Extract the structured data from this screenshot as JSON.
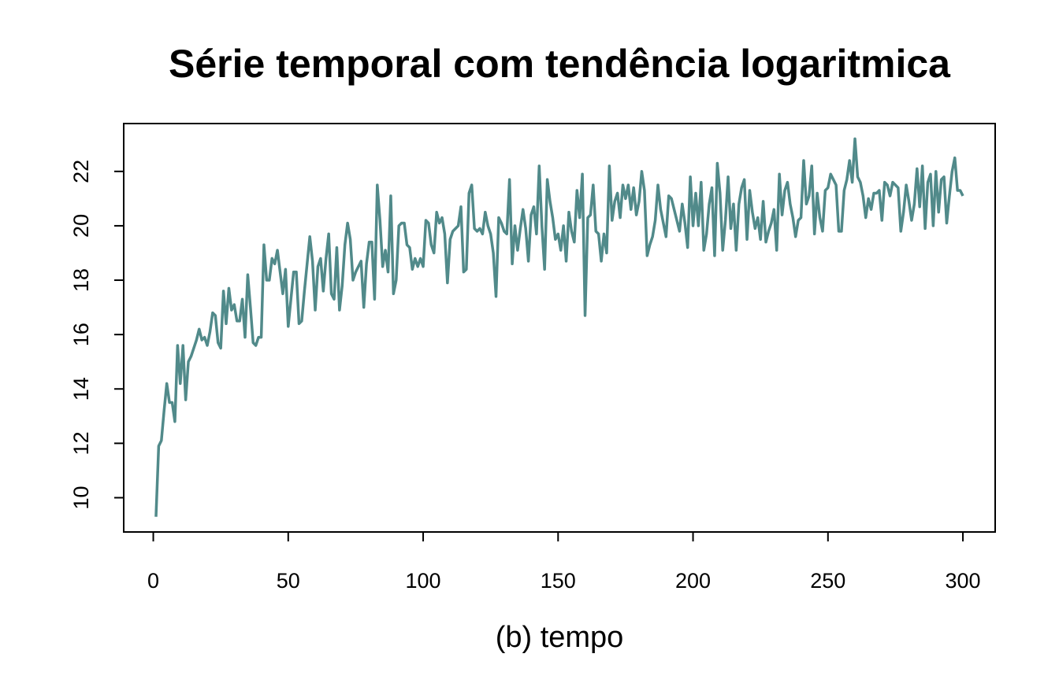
{
  "chart_data": {
    "type": "line",
    "title": "Série temporal com tendência logaritmica",
    "x_label": "(b) tempo",
    "x": [
      1,
      2,
      3,
      4,
      5,
      6,
      7,
      8,
      9,
      10,
      11,
      12,
      13,
      14,
      15,
      16,
      17,
      18,
      19,
      20,
      21,
      22,
      23,
      24,
      25,
      26,
      27,
      28,
      29,
      30,
      31,
      32,
      33,
      34,
      35,
      36,
      37,
      38,
      39,
      40,
      41,
      42,
      43,
      44,
      45,
      46,
      47,
      48,
      49,
      50,
      51,
      52,
      53,
      54,
      55,
      56,
      57,
      58,
      59,
      60,
      61,
      62,
      63,
      64,
      65,
      66,
      67,
      68,
      69,
      70,
      71,
      72,
      73,
      74,
      75,
      76,
      77,
      78,
      79,
      80,
      81,
      82,
      83,
      84,
      85,
      86,
      87,
      88,
      89,
      90,
      91,
      92,
      93,
      94,
      95,
      96,
      97,
      98,
      99,
      100,
      101,
      102,
      103,
      104,
      105,
      106,
      107,
      108,
      109,
      110,
      111,
      112,
      113,
      114,
      115,
      116,
      117,
      118,
      119,
      120,
      121,
      122,
      123,
      124,
      125,
      126,
      127,
      128,
      129,
      130,
      131,
      132,
      133,
      134,
      135,
      136,
      137,
      138,
      139,
      140,
      141,
      142,
      143,
      144,
      145,
      146,
      147,
      148,
      149,
      150,
      151,
      152,
      153,
      154,
      155,
      156,
      157,
      158,
      159,
      160,
      161,
      162,
      163,
      164,
      165,
      166,
      167,
      168,
      169,
      170,
      171,
      172,
      173,
      174,
      175,
      176,
      177,
      178,
      179,
      180,
      181,
      182,
      183,
      184,
      185,
      186,
      187,
      188,
      189,
      190,
      191,
      192,
      193,
      194,
      195,
      196,
      197,
      198,
      199,
      200,
      201,
      202,
      203,
      204,
      205,
      206,
      207,
      208,
      209,
      210,
      211,
      212,
      213,
      214,
      215,
      216,
      217,
      218,
      219,
      220,
      221,
      222,
      223,
      224,
      225,
      226,
      227,
      228,
      229,
      230,
      231,
      232,
      233,
      234,
      235,
      236,
      237,
      238,
      239,
      240,
      241,
      242,
      243,
      244,
      245,
      246,
      247,
      248,
      249,
      250,
      251,
      252,
      253,
      254,
      255,
      256,
      257,
      258,
      259,
      260,
      261,
      262,
      263,
      264,
      265,
      266,
      267,
      268,
      269,
      270,
      271,
      272,
      273,
      274,
      275,
      276,
      277,
      278,
      279,
      280,
      281,
      282,
      283,
      284,
      285,
      286,
      287,
      288,
      289,
      290,
      291,
      292,
      293,
      294,
      295,
      296,
      297,
      298,
      299,
      300
    ],
    "series": [
      {
        "color": "#518a8a",
        "values": [
          9.3,
          11.9,
          12.1,
          13.2,
          14.2,
          13.5,
          13.5,
          12.8,
          15.6,
          14.2,
          15.6,
          13.6,
          15.0,
          15.2,
          15.5,
          15.8,
          16.2,
          15.8,
          15.9,
          15.6,
          16.1,
          16.8,
          16.7,
          15.7,
          15.5,
          17.6,
          16.4,
          17.7,
          16.9,
          17.1,
          16.5,
          16.5,
          17.3,
          15.9,
          18.2,
          17.0,
          15.7,
          15.6,
          15.9,
          15.9,
          19.3,
          18.0,
          18.0,
          18.8,
          18.6,
          19.1,
          18.3,
          17.5,
          18.4,
          16.3,
          17.3,
          18.3,
          18.3,
          16.4,
          16.5,
          17.6,
          18.6,
          19.6,
          18.7,
          16.9,
          18.5,
          18.8,
          17.6,
          18.8,
          19.7,
          17.5,
          17.3,
          19.2,
          16.9,
          17.8,
          19.3,
          20.1,
          19.5,
          18.0,
          18.3,
          18.5,
          18.7,
          17.0,
          18.6,
          19.4,
          19.4,
          17.3,
          21.5,
          20.2,
          18.5,
          19.1,
          18.3,
          21.1,
          17.5,
          18.0,
          20.0,
          20.1,
          20.1,
          19.3,
          19.2,
          18.4,
          18.8,
          18.5,
          18.8,
          18.5,
          20.2,
          20.1,
          19.3,
          19.0,
          20.5,
          20.1,
          20.3,
          19.7,
          17.9,
          19.5,
          19.8,
          19.9,
          20.0,
          20.7,
          18.3,
          18.4,
          21.2,
          21.5,
          19.9,
          19.8,
          19.9,
          19.7,
          20.5,
          20.0,
          19.7,
          19.0,
          17.4,
          20.3,
          20.1,
          19.8,
          19.7,
          21.7,
          18.6,
          20.0,
          19.1,
          19.9,
          20.6,
          19.9,
          18.7,
          20.4,
          20.7,
          19.7,
          22.2,
          20.0,
          18.4,
          21.7,
          20.9,
          20.3,
          19.5,
          19.7,
          19.1,
          20.0,
          18.7,
          20.5,
          19.8,
          19.4,
          21.3,
          20.3,
          21.9,
          16.7,
          20.3,
          20.4,
          21.5,
          19.8,
          19.7,
          18.7,
          19.7,
          19.0,
          22.2,
          20.2,
          20.9,
          21.2,
          20.3,
          21.5,
          21.0,
          21.5,
          20.6,
          21.4,
          20.4,
          20.9,
          22.0,
          21.3,
          18.9,
          19.3,
          19.6,
          20.2,
          21.5,
          20.6,
          20.1,
          19.6,
          21.1,
          21.0,
          20.6,
          20.2,
          19.8,
          20.8,
          20.1,
          19.2,
          21.8,
          20.0,
          21.2,
          20.0,
          21.6,
          19.1,
          19.7,
          20.8,
          21.4,
          18.9,
          22.3,
          21.2,
          19.1,
          20.2,
          21.8,
          19.9,
          20.8,
          19.1,
          20.8,
          21.4,
          21.7,
          19.5,
          21.3,
          20.5,
          19.9,
          20.3,
          19.5,
          20.9,
          19.4,
          19.8,
          20.1,
          20.6,
          19.1,
          21.9,
          20.4,
          21.3,
          21.6,
          20.8,
          20.3,
          19.6,
          20.2,
          20.3,
          22.4,
          20.8,
          21.1,
          22.2,
          19.7,
          21.2,
          20.3,
          19.8,
          21.3,
          21.4,
          21.9,
          21.7,
          21.5,
          19.8,
          19.8,
          21.3,
          21.7,
          22.4,
          21.6,
          23.2,
          21.8,
          21.6,
          21.1,
          20.3,
          21.0,
          20.6,
          21.2,
          21.2,
          21.3,
          20.2,
          21.6,
          21.5,
          21.1,
          21.6,
          21.5,
          21.4,
          19.8,
          20.5,
          21.5,
          20.9,
          20.2,
          20.8,
          22.1,
          20.7,
          22.2,
          19.9,
          21.6,
          21.9,
          20.0,
          22.0,
          20.5,
          21.7,
          21.8,
          20.1,
          21.1,
          22.0,
          22.5,
          21.3,
          21.3,
          21.1
        ]
      }
    ],
    "xlim": [
      -10.96,
      311.96
    ],
    "ylim": [
      8.74,
      23.76
    ],
    "xticks": [
      0,
      50,
      100,
      150,
      200,
      250,
      300
    ],
    "yticks": [
      10,
      12,
      14,
      16,
      18,
      20,
      22
    ]
  }
}
